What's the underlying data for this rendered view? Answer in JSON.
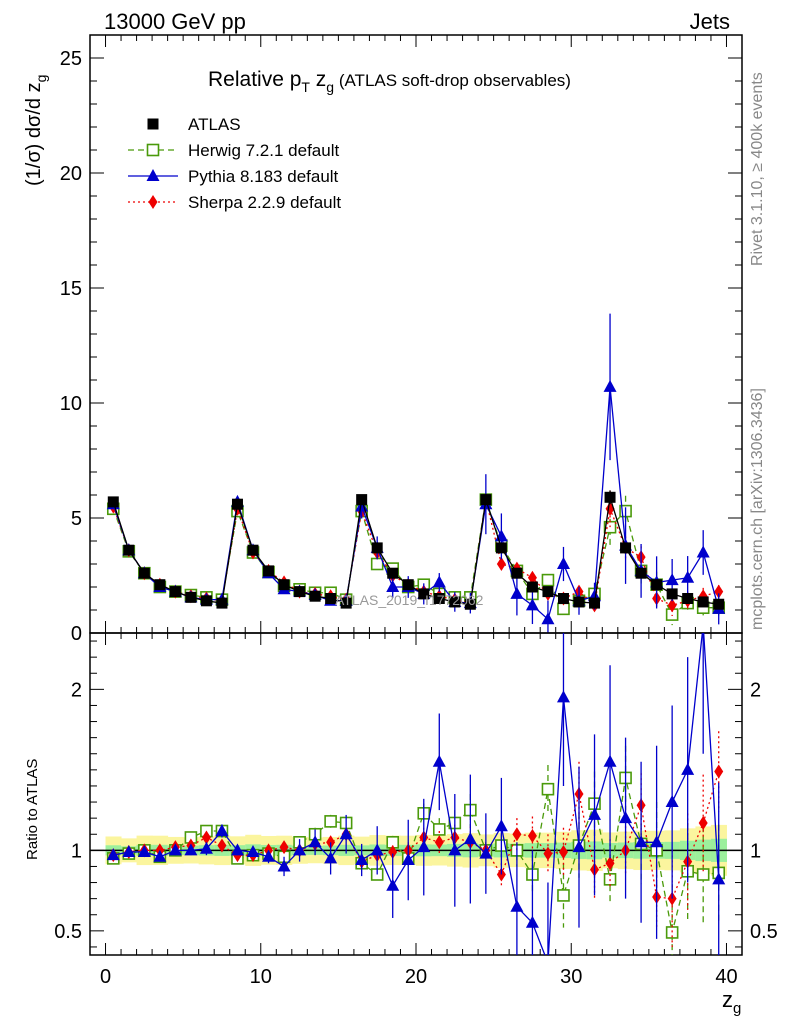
{
  "header": {
    "left": "13000 GeV pp",
    "right": "Jets",
    "side_top": "Rivet 3.1.10, ≥ 400k events",
    "side_bottom": "mcplots.cern.ch [arXiv:1306.3436]",
    "watermark": "ATLAS_2019_I1772062"
  },
  "chart_data": {
    "type": "scatter",
    "title_main": "Relative p",
    "title_sub_T": "T",
    "title_z": " z",
    "title_sub_g": "g",
    "title_rest": " (ATLAS soft-drop observables)",
    "ylabel_main": "(1/σ) dσ/d z",
    "ylabel_sub": "g",
    "ratio_ylabel": "Ratio to ATLAS",
    "xlabel": "z",
    "xlabel_sub": "g",
    "xlim": [
      -1,
      41
    ],
    "ylim_main": [
      0,
      26
    ],
    "ylim_ratio": [
      0.35,
      2.35
    ],
    "x_ticks": [
      "0",
      "10",
      "20",
      "30",
      "40"
    ],
    "y_ticks_main": [
      "0",
      "5",
      "10",
      "15",
      "20",
      "25"
    ],
    "y_ticks_ratio": [
      "0.5",
      "1",
      "2"
    ],
    "x": [
      0.5,
      1.5,
      2.5,
      3.5,
      4.5,
      5.5,
      6.5,
      7.5,
      8.5,
      9.5,
      10.5,
      11.5,
      12.5,
      13.5,
      14.5,
      15.5,
      16.5,
      17.5,
      18.5,
      19.5,
      20.5,
      21.5,
      22.5,
      23.5,
      24.5,
      25.5,
      26.5,
      27.5,
      28.5,
      29.5,
      30.5,
      31.5,
      32.5,
      33.5,
      34.5,
      35.5,
      36.5,
      37.5,
      38.5,
      39.5
    ],
    "series": [
      {
        "name": "ATLAS",
        "color": "#000000",
        "marker": "square-filled",
        "values": [
          5.7,
          3.6,
          2.6,
          2.1,
          1.8,
          1.55,
          1.4,
          1.3,
          5.6,
          3.6,
          2.7,
          2.1,
          1.8,
          1.6,
          1.5,
          1.3,
          5.8,
          3.7,
          2.6,
          2.1,
          1.7,
          1.5,
          1.35,
          1.25,
          5.8,
          3.7,
          2.6,
          2.0,
          1.8,
          1.5,
          1.35,
          1.3,
          5.9,
          3.7,
          2.6,
          2.1,
          1.7,
          1.5,
          1.35,
          1.25
        ],
        "ratio": [
          1,
          1,
          1,
          1,
          1,
          1,
          1,
          1,
          1,
          1,
          1,
          1,
          1,
          1,
          1,
          1,
          1,
          1,
          1,
          1,
          1,
          1,
          1,
          1,
          1,
          1,
          1,
          1,
          1,
          1,
          1,
          1,
          1,
          1,
          1,
          1,
          1,
          1,
          1,
          1
        ],
        "errors": [
          0.2,
          0.1,
          0.1,
          0.08,
          0.06,
          0.05,
          0.05,
          0.05,
          0.2,
          0.15,
          0.1,
          0.08,
          0.06,
          0.05,
          0.05,
          0.05,
          0.2,
          0.15,
          0.1,
          0.08,
          0.07,
          0.06,
          0.06,
          0.06,
          0.25,
          0.18,
          0.12,
          0.1,
          0.09,
          0.08,
          0.08,
          0.08,
          0.3,
          0.2,
          0.15,
          0.12,
          0.1,
          0.1,
          0.1,
          0.1
        ]
      },
      {
        "name": "Herwig 7.2.1 default",
        "color": "#4a9a0a",
        "marker": "square-open",
        "dash": "6,4",
        "values": [
          5.4,
          3.55,
          2.6,
          2.0,
          1.8,
          1.65,
          1.55,
          1.45,
          5.3,
          3.5,
          2.65,
          2.05,
          1.9,
          1.75,
          1.75,
          1.45,
          5.3,
          3.0,
          2.8,
          2.0,
          2.1,
          1.7,
          1.55,
          1.55,
          5.8,
          3.8,
          2.7,
          1.7,
          2.3,
          1.05,
          1.4,
          1.7,
          4.6,
          5.3,
          2.7,
          2.1,
          0.8,
          1.3,
          1.1,
          1.1
        ],
        "ratio": [
          0.95,
          0.98,
          1.0,
          0.96,
          1.0,
          1.08,
          1.12,
          1.12,
          0.95,
          0.97,
          0.98,
          0.96,
          1.05,
          1.1,
          1.18,
          1.17,
          0.92,
          0.85,
          1.05,
          0.95,
          1.23,
          1.13,
          1.17,
          1.25,
          1.0,
          1.03,
          1.0,
          0.85,
          1.38,
          0.72,
          1.03,
          1.29,
          0.82,
          1.45,
          1.04,
          1.0,
          0.49,
          0.87,
          0.85,
          0.86
        ],
        "ratio_errors": [
          0.02,
          0.02,
          0.02,
          0.02,
          0.03,
          0.03,
          0.03,
          0.04,
          0.02,
          0.02,
          0.03,
          0.03,
          0.03,
          0.04,
          0.04,
          0.04,
          0.03,
          0.03,
          0.04,
          0.05,
          0.06,
          0.07,
          0.08,
          0.1,
          0.05,
          0.07,
          0.1,
          0.12,
          0.15,
          0.2,
          0.2,
          0.2,
          0.15,
          0.2,
          0.25,
          0.3,
          0.3,
          0.3,
          0.3,
          0.3
        ]
      },
      {
        "name": "Pythia 8.183 default",
        "color": "#0000cc",
        "marker": "triangle-filled",
        "values": [
          5.6,
          3.6,
          2.6,
          2.0,
          1.8,
          1.55,
          1.45,
          1.45,
          5.7,
          3.6,
          2.6,
          1.9,
          1.8,
          1.65,
          1.4,
          1.4,
          5.5,
          3.7,
          2.0,
          2.0,
          1.7,
          2.2,
          1.35,
          1.3,
          5.6,
          4.2,
          1.7,
          1.2,
          0.6,
          3.0,
          1.4,
          1.6,
          10.7,
          3.8,
          2.7,
          2.2,
          2.3,
          2.4,
          3.5,
          1.05
        ],
        "ratio": [
          0.97,
          0.99,
          0.99,
          0.96,
          1.0,
          1.0,
          1.01,
          1.12,
          1.0,
          0.99,
          0.96,
          0.9,
          1.0,
          1.05,
          0.95,
          1.1,
          0.94,
          1.0,
          0.78,
          0.94,
          1.02,
          1.55,
          1.0,
          1.07,
          0.98,
          1.15,
          0.65,
          0.55,
          0.3,
          1.95,
          1.02,
          1.22,
          1.55,
          1.2,
          1.05,
          1.05,
          1.3,
          1.5,
          2.4,
          0.82
        ],
        "ratio_errors": [
          0.02,
          0.02,
          0.02,
          0.03,
          0.03,
          0.03,
          0.04,
          0.04,
          0.03,
          0.03,
          0.04,
          0.06,
          0.07,
          0.08,
          0.1,
          0.12,
          0.1,
          0.15,
          0.2,
          0.25,
          0.3,
          0.3,
          0.35,
          0.4,
          0.25,
          0.3,
          0.4,
          0.45,
          0.5,
          0.55,
          0.5,
          0.5,
          0.6,
          0.5,
          0.5,
          0.6,
          0.6,
          0.7,
          0.8,
          0.6
        ]
      },
      {
        "name": "Sherpa 2.2.9 default",
        "color": "#ee0000",
        "marker": "diamond-filled",
        "dash": "2,3",
        "values": [
          5.5,
          3.6,
          2.6,
          2.1,
          1.8,
          1.6,
          1.5,
          1.4,
          5.4,
          3.5,
          2.7,
          2.2,
          1.8,
          1.7,
          1.6,
          1.45,
          5.3,
          3.5,
          2.5,
          2.1,
          1.8,
          1.6,
          1.45,
          1.3,
          5.8,
          3.0,
          2.8,
          2.4,
          1.7,
          1.5,
          1.8,
          1.2,
          5.4,
          3.7,
          3.3,
          1.5,
          1.2,
          1.4,
          1.6,
          1.8
        ],
        "ratio": [
          0.97,
          0.99,
          1.0,
          1.0,
          1.02,
          1.03,
          1.08,
          1.03,
          0.97,
          0.97,
          1.0,
          1.02,
          1.0,
          1.04,
          1.05,
          1.1,
          0.93,
          0.97,
          0.99,
          1.0,
          1.08,
          1.05,
          1.08,
          1.05,
          1.0,
          0.85,
          1.1,
          1.09,
          0.98,
          0.99,
          1.35,
          0.88,
          0.92,
          1.0,
          1.28,
          0.71,
          0.7,
          0.93,
          1.17,
          1.49
        ],
        "ratio_errors": [
          0.02,
          0.02,
          0.02,
          0.02,
          0.02,
          0.03,
          0.03,
          0.03,
          0.02,
          0.02,
          0.02,
          0.03,
          0.03,
          0.03,
          0.04,
          0.04,
          0.03,
          0.03,
          0.04,
          0.05,
          0.06,
          0.07,
          0.08,
          0.1,
          0.05,
          0.07,
          0.1,
          0.12,
          0.12,
          0.15,
          0.2,
          0.18,
          0.15,
          0.15,
          0.2,
          0.2,
          0.3,
          0.3,
          0.3,
          0.25
        ]
      }
    ]
  }
}
